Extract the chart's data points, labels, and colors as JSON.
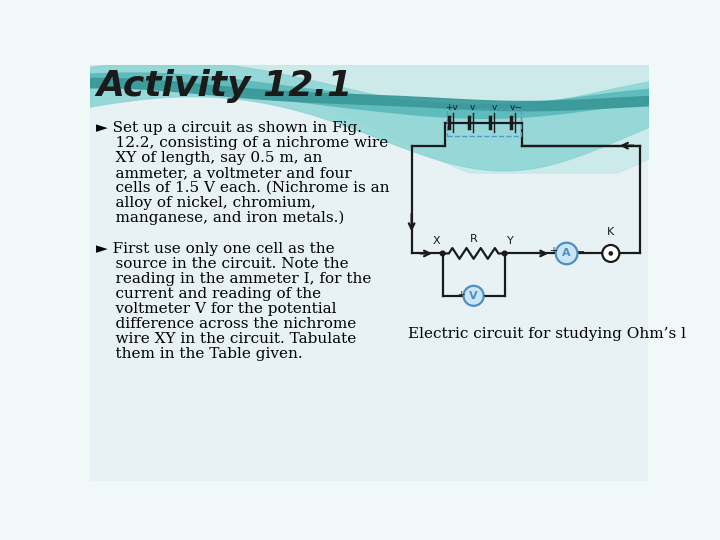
{
  "title": "Activity 12.1",
  "title_color": "#1a1a1a",
  "title_fontsize": 26,
  "bg_color": "#f0f8f8",
  "bullet1_lines": [
    "► Set up a circuit as shown in Fig.",
    "    12.2, consisting of a nichrome wire",
    "    XY of length, say 0.5 m, an",
    "    ammeter, a voltmeter and four",
    "    cells of 1.5 V each. (Nichrome is an",
    "    alloy of nickel, chromium,",
    "    manganese, and iron metals.)"
  ],
  "bullet2_lines": [
    "► First use only one cell as the",
    "    source in the circuit. Note the",
    "    reading in the ammeter I, for the",
    "    current and reading of the",
    "    voltmeter V for the potential",
    "    difference across the nichrome",
    "    wire XY in the circuit. Tabulate",
    "    them in the Table given."
  ],
  "caption": "Electric circuit for studying Ohm’s l",
  "text_color": "#000000",
  "text_fontsize": 11.0,
  "circuit_color": "#1a1a1a",
  "circuit_blue": "#4a90c4",
  "circuit_lw": 1.6,
  "wave_colors": [
    "#a8d8d8",
    "#7ec8c8",
    "#5ab5b5",
    "#3a9f9f"
  ],
  "bg_panel": "#e8f4f4"
}
